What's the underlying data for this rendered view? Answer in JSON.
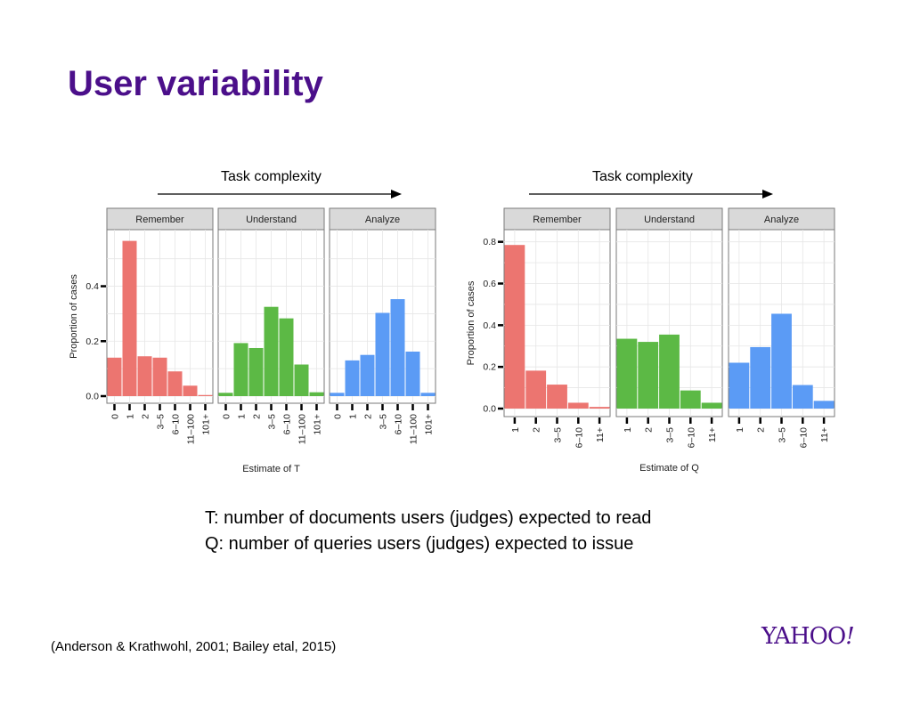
{
  "slide": {
    "title": "User variability",
    "task_complexity_label": "Task complexity",
    "definition_t": "T: number of documents users (judges) expected to read",
    "definition_q": "Q: number of queries users (judges) expected to issue",
    "citation": "(Anderson & Krathwohl, 2001; Bailey etal, 2015)",
    "logo": {
      "main": "YAHOO",
      "bang": "!"
    }
  },
  "chart_data": [
    {
      "type": "bar",
      "xlabel": "Estimate of T",
      "ylabel": "Proportion of cases",
      "ylim": [
        0,
        0.58
      ],
      "yticks": [
        0.0,
        0.2,
        0.4
      ],
      "ytick_labels": [
        "0.0",
        "0.2",
        "0.4"
      ],
      "categories": [
        "0",
        "1",
        "2",
        "3–5",
        "6–10",
        "11–100",
        "101+"
      ],
      "grid": true,
      "facets": [
        {
          "name": "Remember",
          "color": "#ec7570",
          "values": [
            0.14,
            0.565,
            0.145,
            0.14,
            0.09,
            0.038,
            0.004
          ]
        },
        {
          "name": "Understand",
          "color": "#5cb945",
          "values": [
            0.012,
            0.193,
            0.175,
            0.325,
            0.283,
            0.115,
            0.014
          ]
        },
        {
          "name": "Analyze",
          "color": "#5b9bf5",
          "values": [
            0.012,
            0.13,
            0.15,
            0.303,
            0.353,
            0.162,
            0.012
          ]
        }
      ]
    },
    {
      "type": "bar",
      "xlabel": "Estimate of Q",
      "ylabel": "Proportion of cases",
      "ylim": [
        0,
        0.82
      ],
      "yticks": [
        0.0,
        0.2,
        0.4,
        0.6,
        0.8
      ],
      "ytick_labels": [
        "0.0",
        "0.2",
        "0.4",
        "0.6",
        "0.8"
      ],
      "categories": [
        "1",
        "2",
        "3–5",
        "6–10",
        "11+"
      ],
      "grid": true,
      "facets": [
        {
          "name": "Remember",
          "color": "#ec7570",
          "values": [
            0.785,
            0.182,
            0.115,
            0.028,
            0.008
          ]
        },
        {
          "name": "Understand",
          "color": "#5cb945",
          "values": [
            0.335,
            0.32,
            0.355,
            0.087,
            0.028
          ]
        },
        {
          "name": "Analyze",
          "color": "#5b9bf5",
          "values": [
            0.22,
            0.295,
            0.455,
            0.113,
            0.037
          ]
        }
      ]
    }
  ]
}
